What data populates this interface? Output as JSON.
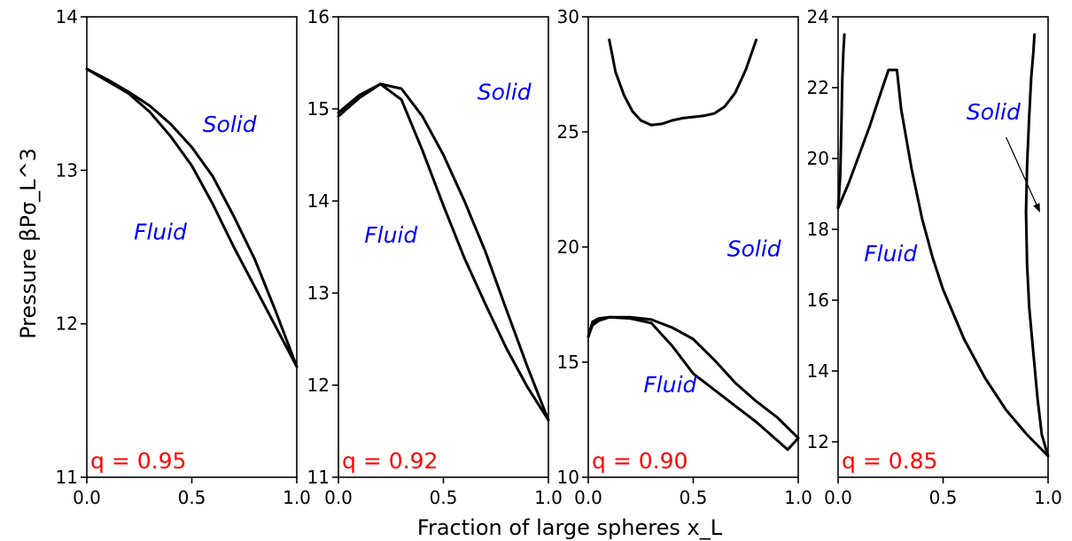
{
  "figure": {
    "xlabel": "Fraction of large spheres x_L",
    "ylabel": "Pressure βPσ_L^3"
  },
  "chart_data": [
    {
      "type": "line",
      "annotation": "q = 0.95",
      "xlim": [
        0,
        1
      ],
      "ylim": [
        11,
        14
      ],
      "xticks": [
        "0.0",
        "0.5",
        "1.0"
      ],
      "yticks": [
        11,
        12,
        13,
        14
      ],
      "regions": [
        {
          "label": "Solid",
          "x": 0.68,
          "y": 13.25
        },
        {
          "label": "Fluid",
          "x": 0.35,
          "y": 12.55
        }
      ],
      "series": [
        {
          "x": [
            0,
            0.1,
            0.2,
            0.3,
            0.4,
            0.5,
            0.6,
            0.7,
            0.8,
            0.9,
            1.0
          ],
          "y": [
            13.66,
            13.58,
            13.5,
            13.38,
            13.22,
            13.03,
            12.78,
            12.5,
            12.24,
            11.98,
            11.72
          ]
        },
        {
          "x": [
            0,
            0.1,
            0.2,
            0.3,
            0.4,
            0.5,
            0.6,
            0.7,
            0.8,
            0.9,
            1.0
          ],
          "y": [
            13.66,
            13.59,
            13.51,
            13.42,
            13.3,
            13.15,
            12.96,
            12.7,
            12.42,
            12.08,
            11.72
          ]
        }
      ]
    },
    {
      "type": "line",
      "annotation": "q = 0.92",
      "xlim": [
        0,
        1
      ],
      "ylim": [
        11,
        16
      ],
      "xticks": [
        "0.0",
        "0.5",
        "1.0"
      ],
      "yticks": [
        11,
        12,
        13,
        14,
        15,
        16
      ],
      "regions": [
        {
          "label": "Solid",
          "x": 0.79,
          "y": 15.1
        },
        {
          "label": "Fluid",
          "x": 0.25,
          "y": 13.55
        }
      ],
      "series": [
        {
          "x": [
            0,
            0.1,
            0.2,
            0.3,
            0.4,
            0.5,
            0.6,
            0.7,
            0.8,
            0.9,
            1.0
          ],
          "y": [
            14.92,
            15.12,
            15.27,
            15.1,
            14.55,
            13.95,
            13.38,
            12.88,
            12.4,
            11.98,
            11.62
          ]
        },
        {
          "x": [
            0,
            0.1,
            0.2,
            0.3,
            0.4,
            0.5,
            0.6,
            0.7,
            0.8,
            0.9,
            1.0
          ],
          "y": [
            14.96,
            15.15,
            15.27,
            15.22,
            14.92,
            14.5,
            14.0,
            13.45,
            12.82,
            12.2,
            11.62
          ]
        }
      ]
    },
    {
      "type": "line",
      "annotation": "q = 0.90",
      "xlim": [
        0,
        1
      ],
      "ylim": [
        10,
        30
      ],
      "xticks": [
        "0.0",
        "0.5",
        "1.0"
      ],
      "yticks": [
        10,
        15,
        20,
        25,
        30
      ],
      "regions": [
        {
          "label": "Solid",
          "x": 0.79,
          "y": 19.6
        },
        {
          "label": "Fluid",
          "x": 0.39,
          "y": 13.7
        }
      ],
      "series": [
        {
          "x": [
            0.1,
            0.13,
            0.17,
            0.21,
            0.25,
            0.3,
            0.35,
            0.4,
            0.45,
            0.5,
            0.55,
            0.6,
            0.65,
            0.7,
            0.75,
            0.8
          ],
          "y": [
            29.0,
            27.6,
            26.6,
            25.9,
            25.5,
            25.3,
            25.35,
            25.5,
            25.6,
            25.65,
            25.7,
            25.8,
            26.1,
            26.7,
            27.7,
            29.0
          ]
        },
        {
          "x": [
            0,
            0.02,
            0.05,
            0.1,
            0.2,
            0.3,
            0.4,
            0.5,
            0.6,
            0.7,
            0.8,
            0.9,
            0.95,
            1.0
          ],
          "y": [
            16.1,
            16.75,
            16.9,
            16.95,
            16.9,
            16.7,
            15.7,
            14.5,
            13.8,
            13.1,
            12.4,
            11.6,
            11.2,
            11.7
          ]
        },
        {
          "x": [
            0,
            0.02,
            0.05,
            0.1,
            0.2,
            0.3,
            0.4,
            0.5,
            0.6,
            0.7,
            0.8,
            0.9,
            1.0
          ],
          "y": [
            16.1,
            16.6,
            16.8,
            16.95,
            16.95,
            16.85,
            16.5,
            16.0,
            15.1,
            14.1,
            13.3,
            12.6,
            11.7
          ]
        }
      ]
    },
    {
      "type": "line",
      "annotation": "q = 0.85",
      "xlim": [
        0,
        1
      ],
      "ylim": [
        11,
        24
      ],
      "xticks": [
        "0.0",
        "0.5",
        "1.0"
      ],
      "yticks": [
        12,
        14,
        16,
        18,
        20,
        22,
        24
      ],
      "regions": [
        {
          "label": "Solid",
          "x": 0.74,
          "y": 21.1
        },
        {
          "label": "Fluid",
          "x": 0.25,
          "y": 17.1
        }
      ],
      "arrow": {
        "from": [
          0.8,
          20.6
        ],
        "to": [
          0.96,
          18.5
        ]
      },
      "series": [
        {
          "x": [
            0,
            0.01,
            0.015,
            0.02,
            0.025,
            0.03
          ],
          "y": [
            18.6,
            19.5,
            20.8,
            22.2,
            23.0,
            23.5
          ]
        },
        {
          "x": [
            0,
            0.05,
            0.1,
            0.15,
            0.2,
            0.24,
            0.26,
            0.28,
            0.3,
            0.35,
            0.4,
            0.45,
            0.5,
            0.6,
            0.7,
            0.8,
            0.9,
            0.95,
            1.0
          ],
          "y": [
            18.6,
            19.3,
            20.1,
            20.9,
            21.8,
            22.5,
            22.5,
            22.5,
            21.4,
            19.7,
            18.3,
            17.2,
            16.3,
            14.9,
            13.8,
            12.9,
            12.2,
            11.9,
            11.6
          ]
        },
        {
          "x": [
            1.0,
            0.97,
            0.95,
            0.93,
            0.91,
            0.9,
            0.895,
            0.9,
            0.91,
            0.92,
            0.93,
            0.935
          ],
          "y": [
            11.6,
            12.2,
            13.2,
            14.5,
            15.8,
            17.0,
            18.5,
            19.8,
            21.2,
            22.3,
            23.0,
            23.5
          ]
        }
      ]
    }
  ]
}
